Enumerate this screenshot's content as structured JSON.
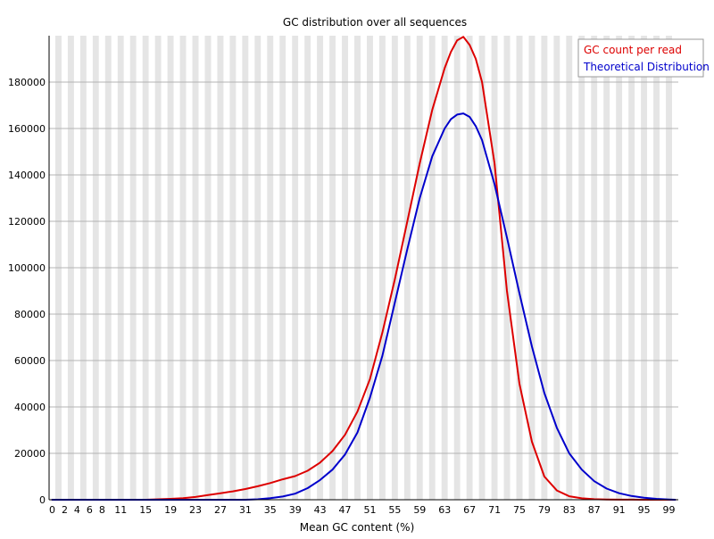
{
  "chart_data": {
    "type": "line",
    "title": "GC distribution over all sequences",
    "xlabel": "Mean GC content (%)",
    "ylabel": "",
    "xlim": [
      0,
      101
    ],
    "ylim": [
      0,
      200000
    ],
    "grid": true,
    "legend_position": "top-right",
    "x_ticks": [
      "0",
      "2",
      "4",
      "6",
      "8",
      "11",
      "15",
      "19",
      "23",
      "27",
      "31",
      "35",
      "39",
      "43",
      "47",
      "51",
      "55",
      "59",
      "63",
      "67",
      "71",
      "75",
      "79",
      "83",
      "87",
      "91",
      "95",
      "99"
    ],
    "y_ticks": [
      "0",
      "20000",
      "40000",
      "60000",
      "80000",
      "100000",
      "120000",
      "140000",
      "160000",
      "180000"
    ],
    "x": [
      0,
      2,
      4,
      6,
      8,
      11,
      15,
      17,
      19,
      21,
      23,
      25,
      27,
      29,
      31,
      33,
      35,
      37,
      39,
      41,
      43,
      45,
      47,
      49,
      51,
      53,
      55,
      57,
      59,
      61,
      63,
      64,
      65,
      66,
      67,
      68,
      69,
      71,
      73,
      75,
      77,
      79,
      81,
      83,
      85,
      87,
      89,
      91,
      93,
      95,
      97,
      99,
      100
    ],
    "series": [
      {
        "name": "GC count per read",
        "color": "#dd0000",
        "values": [
          0,
          0,
          0,
          0,
          0,
          0,
          0,
          200,
          400,
          700,
          1200,
          2000,
          2800,
          3600,
          4600,
          5800,
          7200,
          8800,
          10200,
          12500,
          16000,
          21000,
          28000,
          38000,
          52000,
          72000,
          95000,
          120000,
          145000,
          168000,
          186000,
          193000,
          198000,
          199500,
          196000,
          190000,
          180000,
          145000,
          90000,
          50000,
          25000,
          10000,
          4000,
          1500,
          600,
          250,
          100,
          40,
          20,
          10,
          5,
          0,
          0
        ]
      },
      {
        "name": "Theoretical Distribution",
        "color": "#0000cc",
        "values": [
          0,
          0,
          0,
          0,
          0,
          0,
          0,
          0,
          0,
          0,
          0,
          0,
          0,
          0,
          0,
          200,
          700,
          1400,
          2600,
          5000,
          8500,
          13000,
          19500,
          29000,
          44000,
          62000,
          85000,
          108000,
          130000,
          148000,
          160000,
          164000,
          166000,
          166500,
          165000,
          161000,
          155000,
          136000,
          113000,
          89000,
          66000,
          46000,
          31000,
          20000,
          13000,
          8000,
          4800,
          2800,
          1600,
          900,
          400,
          100,
          0
        ]
      }
    ]
  }
}
